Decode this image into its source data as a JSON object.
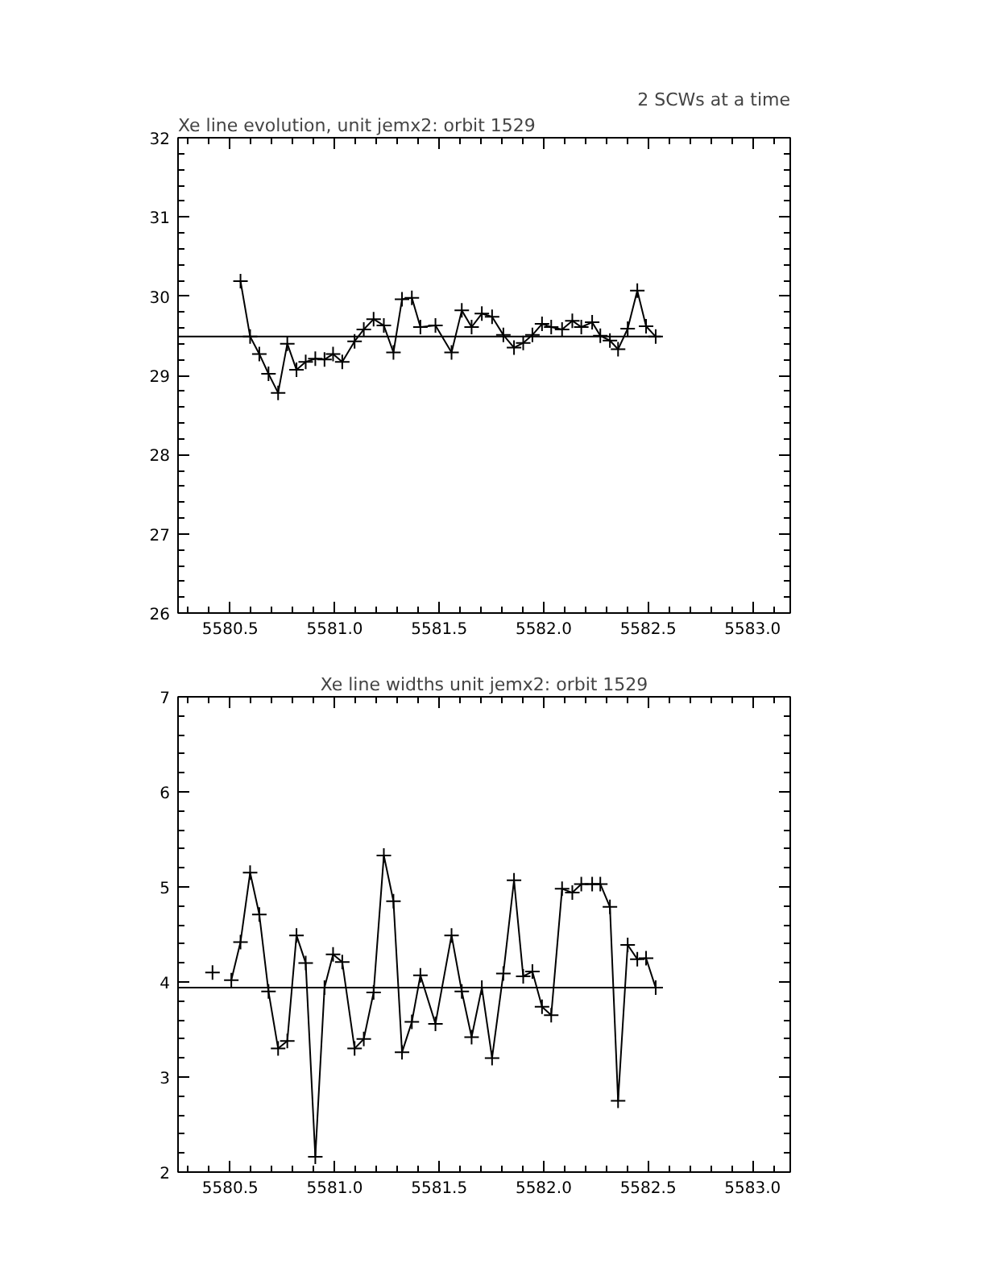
{
  "chart_data": [
    {
      "type": "line",
      "title": "Xe line evolution, unit jemx2: orbit 1529",
      "subtitle": "2 SCWs at a time",
      "marker": "cross",
      "line_style": "solid",
      "grid": false,
      "series": [
        {
          "color": "#000000",
          "x": [
            5580.549,
            5580.595,
            5580.639,
            5580.683,
            5580.729,
            5580.773,
            5580.817,
            5580.861,
            5580.907,
            5580.951,
            5580.992,
            5581.036,
            5581.095,
            5581.139,
            5581.186,
            5581.235,
            5581.281,
            5581.322,
            5581.369,
            5581.41,
            5581.482,
            5581.559,
            5581.608,
            5581.655,
            5581.704,
            5581.753,
            5581.807,
            5581.858,
            5581.902,
            5581.946,
            5581.992,
            5582.036,
            5582.088,
            5582.137,
            5582.18,
            5582.232,
            5582.271,
            5582.317,
            5582.356,
            5582.402,
            5582.448,
            5582.49,
            5582.536
          ],
          "values": [
            30.19,
            29.49,
            29.27,
            29.02,
            28.78,
            29.4,
            29.07,
            29.17,
            29.21,
            29.2,
            29.27,
            29.17,
            29.43,
            29.58,
            29.71,
            29.63,
            29.29,
            29.96,
            29.98,
            29.61,
            29.63,
            29.29,
            29.82,
            29.61,
            29.78,
            29.74,
            29.51,
            29.35,
            29.41,
            29.51,
            29.65,
            29.61,
            29.58,
            29.69,
            29.61,
            29.67,
            29.5,
            29.44,
            29.33,
            29.59,
            30.07,
            29.62,
            29.49
          ]
        },
        {
          "type": "line",
          "marker": "none",
          "color": "#000000",
          "x": [
            5580.25,
            5582.56
          ],
          "values": [
            29.49,
            29.49
          ]
        }
      ],
      "xlim": [
        5580.25,
        5583.18
      ],
      "xticks": [
        {
          "value": 5580.5,
          "label": "5580.5"
        },
        {
          "value": 5581.0,
          "label": "5581.0"
        },
        {
          "value": 5581.5,
          "label": "5581.5"
        },
        {
          "value": 5582.0,
          "label": "5582.0"
        },
        {
          "value": 5582.5,
          "label": "5582.5"
        },
        {
          "value": 5583.0,
          "label": "5583.0"
        }
      ],
      "ylim": [
        26,
        32
      ],
      "yticks": [
        26,
        27,
        28,
        29,
        30,
        31,
        32
      ]
    },
    {
      "type": "line",
      "title": "Xe line widths unit jemx2: orbit 1529",
      "marker": "cross",
      "line_style": "solid",
      "grid": false,
      "x": [
        5580.415,
        5580.456,
        5580.505,
        5580.549,
        5580.595,
        5580.639,
        5580.683,
        5580.729,
        5580.773,
        5580.817,
        5580.861,
        5580.907,
        5580.951,
        5580.992,
        5581.036,
        5581.095,
        5581.139,
        5581.186,
        5581.235,
        5581.281,
        5581.322,
        5581.369,
        5581.41,
        5581.482,
        5581.559,
        5581.608,
        5581.655,
        5581.704,
        5581.753,
        5581.807,
        5581.858,
        5581.902,
        5581.946,
        5581.992,
        5582.036,
        5582.088,
        5582.137,
        5582.18,
        5582.232,
        5582.271,
        5582.317,
        5582.356,
        5582.402,
        5582.448,
        5582.49,
        5582.536
      ],
      "series": [
        {
          "color": "#000000",
          "values": [
            4.1,
            null,
            4.02,
            4.42,
            5.15,
            4.71,
            3.9,
            3.3,
            3.38,
            4.49,
            4.2,
            2.16,
            3.94,
            4.29,
            4.21,
            3.3,
            3.4,
            3.89,
            5.33,
            4.85,
            3.26,
            3.58,
            4.07,
            3.56,
            4.49,
            3.9,
            3.42,
            3.94,
            3.2,
            4.09,
            5.07,
            4.06,
            4.11,
            3.74,
            3.65,
            4.98,
            4.94,
            5.03,
            5.03,
            5.03,
            4.79,
            2.75,
            4.39,
            4.24,
            4.25,
            3.94
          ]
        },
        {
          "type": "line",
          "marker": "none",
          "color": "#000000",
          "x": [
            5580.25,
            5582.56
          ],
          "values": [
            3.94,
            3.94
          ]
        }
      ],
      "xlim": [
        5580.25,
        5583.18
      ],
      "xticks": [
        {
          "value": 5580.5,
          "label": "5580.5"
        },
        {
          "value": 5581.0,
          "label": "5581.0"
        },
        {
          "value": 5581.5,
          "label": "5581.5"
        },
        {
          "value": 5582.0,
          "label": "5582.0"
        },
        {
          "value": 5582.5,
          "label": "5582.5"
        },
        {
          "value": 5583.0,
          "label": "5583.0"
        }
      ],
      "ylim": [
        2,
        7
      ],
      "yticks": [
        2,
        3,
        4,
        5,
        6,
        7
      ]
    }
  ]
}
